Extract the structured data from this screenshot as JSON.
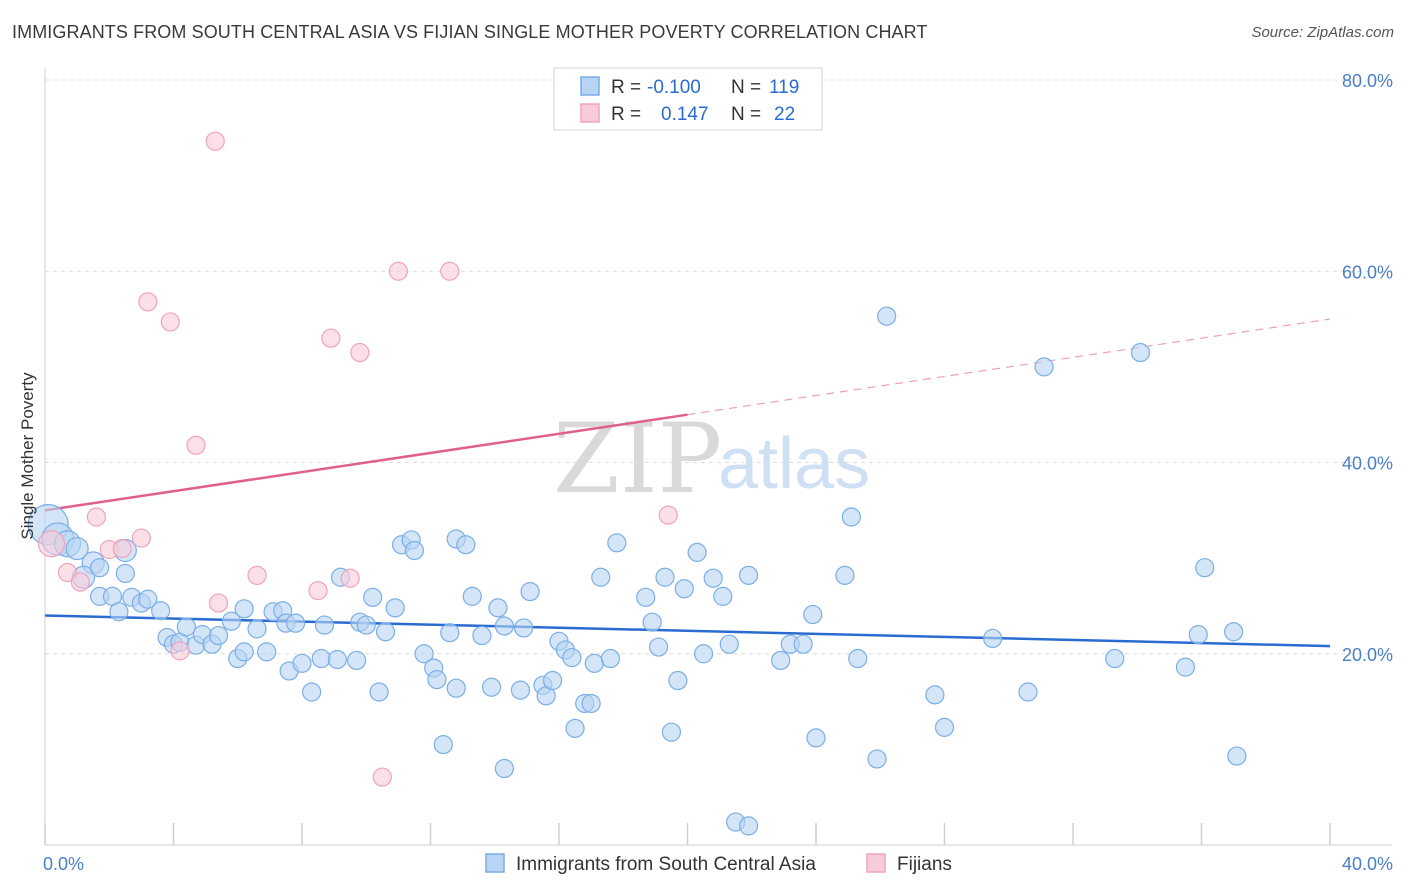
{
  "title": "IMMIGRANTS FROM SOUTH CENTRAL ASIA VS FIJIAN SINGLE MOTHER POVERTY CORRELATION CHART",
  "source": "Source: ZipAtlas.com",
  "watermark": {
    "zip": "ZIP",
    "atlas": "atlas"
  },
  "colors": {
    "blue": "#7aaee8",
    "blue_fill": "#b8d3f3",
    "blue_line": "#2a6bd1",
    "pink": "#f0a3bd",
    "pink_fill": "#f8cbd9",
    "pink_line": "#e0608a"
  },
  "legend": {
    "rows": [
      {
        "r_label": "R =",
        "r_value": "-0.100",
        "n_label": "N =",
        "n_value": "119"
      },
      {
        "r_label": "R =",
        "r_value": "0.147",
        "n_label": "N =",
        "n_value": "22"
      }
    ]
  },
  "bottom_legend": [
    "Immigrants from South Central Asia",
    "Fijians"
  ],
  "chart_data": {
    "type": "scatter",
    "ylabel": "Single Mother Poverty",
    "xlim": [
      0,
      40
    ],
    "ylim": [
      0,
      80
    ],
    "x_tick_labels": [
      {
        "value": 0,
        "label": "0.0%"
      },
      {
        "value": 40,
        "label": "40.0%"
      }
    ],
    "y_tick_labels": [
      {
        "value": 20,
        "label": "20.0%"
      },
      {
        "value": 40,
        "label": "40.0%"
      },
      {
        "value": 60,
        "label": "60.0%"
      },
      {
        "value": 80,
        "label": "80.0%"
      }
    ],
    "grid": true,
    "series": [
      {
        "name": "Immigrants from South Central Asia",
        "trend": {
          "x0": 0,
          "y0": 24.0,
          "x1": 40,
          "y1": 20.8,
          "solid_until": 40
        },
        "points": [
          [
            0.1,
            33.5,
            5
          ],
          [
            0.4,
            32.0,
            4
          ],
          [
            0.7,
            31.5,
            3
          ],
          [
            1.0,
            31.0,
            2
          ],
          [
            1.5,
            29.5,
            2
          ],
          [
            1.2,
            28.0,
            2
          ],
          [
            1.7,
            29.0,
            1
          ],
          [
            2.5,
            30.8,
            2
          ],
          [
            2.5,
            28.4,
            1
          ],
          [
            1.7,
            26.0,
            1
          ],
          [
            2.1,
            26.0,
            1
          ],
          [
            2.3,
            24.4,
            1
          ],
          [
            2.7,
            25.9,
            1
          ],
          [
            3.0,
            25.3,
            1
          ],
          [
            3.2,
            25.7,
            1
          ],
          [
            3.6,
            24.5,
            1
          ],
          [
            3.8,
            21.7,
            1
          ],
          [
            4.0,
            21.0,
            1
          ],
          [
            4.2,
            21.2,
            1
          ],
          [
            4.4,
            22.8,
            1
          ],
          [
            4.7,
            20.9,
            1
          ],
          [
            4.9,
            22.0,
            1
          ],
          [
            5.2,
            21.0,
            1
          ],
          [
            5.4,
            21.9,
            1
          ],
          [
            5.8,
            23.4,
            1
          ],
          [
            6.0,
            19.5,
            1
          ],
          [
            6.2,
            20.2,
            1
          ],
          [
            6.2,
            24.7,
            1
          ],
          [
            6.6,
            22.6,
            1
          ],
          [
            6.9,
            20.2,
            1
          ],
          [
            7.1,
            24.4,
            1
          ],
          [
            7.4,
            24.5,
            1
          ],
          [
            7.5,
            23.2,
            1
          ],
          [
            7.8,
            23.2,
            1
          ],
          [
            7.6,
            18.2,
            1
          ],
          [
            8.0,
            19.0,
            1
          ],
          [
            8.3,
            16.0,
            1
          ],
          [
            8.6,
            19.5,
            1
          ],
          [
            8.7,
            23.0,
            1
          ],
          [
            9.1,
            19.4,
            1
          ],
          [
            9.2,
            28.0,
            1
          ],
          [
            9.7,
            19.3,
            1
          ],
          [
            9.8,
            23.3,
            1
          ],
          [
            10.0,
            23.0,
            1
          ],
          [
            10.2,
            25.9,
            1
          ],
          [
            10.4,
            16.0,
            1
          ],
          [
            10.6,
            22.3,
            1
          ],
          [
            10.9,
            24.8,
            1
          ],
          [
            11.1,
            31.4,
            1
          ],
          [
            11.4,
            31.9,
            1
          ],
          [
            11.5,
            30.8,
            1
          ],
          [
            11.8,
            20.0,
            1
          ],
          [
            12.1,
            18.5,
            1
          ],
          [
            12.2,
            17.3,
            1
          ],
          [
            12.4,
            10.5,
            1
          ],
          [
            12.6,
            22.2,
            1
          ],
          [
            12.8,
            16.4,
            1
          ],
          [
            12.8,
            32.0,
            1
          ],
          [
            13.1,
            31.4,
            1
          ],
          [
            13.3,
            26.0,
            1
          ],
          [
            13.6,
            21.9,
            1
          ],
          [
            13.9,
            16.5,
            1
          ],
          [
            14.1,
            24.8,
            1
          ],
          [
            14.3,
            22.9,
            1
          ],
          [
            14.3,
            8.0,
            1
          ],
          [
            14.8,
            16.2,
            1
          ],
          [
            14.9,
            22.7,
            1
          ],
          [
            15.1,
            26.5,
            1
          ],
          [
            15.5,
            16.7,
            1
          ],
          [
            15.6,
            15.6,
            1
          ],
          [
            15.8,
            17.2,
            1
          ],
          [
            16.0,
            21.3,
            1
          ],
          [
            16.2,
            20.4,
            1
          ],
          [
            16.4,
            19.6,
            1
          ],
          [
            16.5,
            12.2,
            1
          ],
          [
            16.8,
            14.8,
            1
          ],
          [
            17.0,
            14.8,
            1
          ],
          [
            17.1,
            19.0,
            1
          ],
          [
            17.3,
            28.0,
            1
          ],
          [
            17.6,
            19.5,
            1
          ],
          [
            17.8,
            31.6,
            1
          ],
          [
            18.7,
            25.9,
            1
          ],
          [
            18.9,
            23.3,
            1
          ],
          [
            19.1,
            20.7,
            1
          ],
          [
            19.3,
            28.0,
            1
          ],
          [
            19.5,
            11.8,
            1
          ],
          [
            19.7,
            17.2,
            1
          ],
          [
            19.9,
            26.8,
            1
          ],
          [
            20.3,
            30.6,
            1
          ],
          [
            20.5,
            20.0,
            1
          ],
          [
            20.8,
            27.9,
            1
          ],
          [
            21.1,
            26.0,
            1
          ],
          [
            21.3,
            21.0,
            1
          ],
          [
            21.5,
            2.4,
            1
          ],
          [
            21.9,
            28.2,
            1
          ],
          [
            21.9,
            2.0,
            1
          ],
          [
            22.9,
            19.3,
            1
          ],
          [
            23.2,
            21.0,
            1
          ],
          [
            23.6,
            21.0,
            1
          ],
          [
            23.9,
            24.1,
            1
          ],
          [
            24.0,
            11.2,
            1
          ],
          [
            24.9,
            28.2,
            1
          ],
          [
            25.1,
            34.3,
            1
          ],
          [
            25.3,
            19.5,
            1
          ],
          [
            25.9,
            9.0,
            1
          ],
          [
            26.2,
            55.3,
            1
          ],
          [
            27.7,
            15.7,
            1
          ],
          [
            28.0,
            12.3,
            1
          ],
          [
            29.5,
            21.6,
            1
          ],
          [
            30.6,
            16.0,
            1
          ],
          [
            31.1,
            50.0,
            1
          ],
          [
            33.3,
            19.5,
            1
          ],
          [
            34.1,
            51.5,
            1
          ],
          [
            35.5,
            18.6,
            1
          ],
          [
            35.9,
            22.0,
            1
          ],
          [
            36.1,
            29.0,
            1
          ],
          [
            37.0,
            22.3,
            1
          ],
          [
            37.1,
            9.3,
            1
          ]
        ]
      },
      {
        "name": "Fijians",
        "trend": {
          "x0": 0,
          "y0": 35.0,
          "x1": 40,
          "y1": 55.0,
          "solid_until": 20.0
        },
        "points": [
          [
            0.2,
            31.5,
            3
          ],
          [
            0.7,
            28.5,
            1
          ],
          [
            1.1,
            27.5,
            1
          ],
          [
            1.6,
            34.3,
            1
          ],
          [
            2.0,
            30.9,
            1
          ],
          [
            2.4,
            31.0,
            1
          ],
          [
            3.0,
            32.1,
            1
          ],
          [
            3.2,
            56.8,
            1
          ],
          [
            3.9,
            54.7,
            1
          ],
          [
            4.2,
            20.3,
            1
          ],
          [
            4.7,
            41.8,
            1
          ],
          [
            5.3,
            73.6,
            1
          ],
          [
            5.4,
            25.3,
            1
          ],
          [
            6.6,
            28.2,
            1
          ],
          [
            8.5,
            26.6,
            1
          ],
          [
            8.9,
            53.0,
            1
          ],
          [
            9.5,
            27.9,
            1
          ],
          [
            9.8,
            51.5,
            1
          ],
          [
            10.5,
            7.1,
            1
          ],
          [
            11.0,
            60.0,
            1
          ],
          [
            12.6,
            60.0,
            1
          ],
          [
            19.4,
            34.5,
            1
          ]
        ]
      }
    ]
  }
}
